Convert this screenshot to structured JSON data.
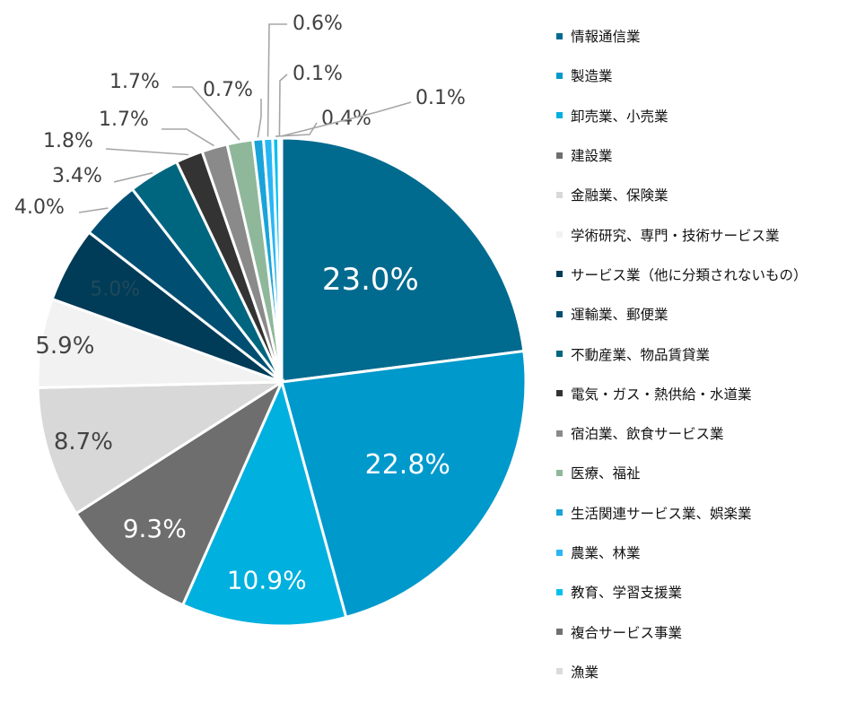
{
  "chart_data": {
    "type": "pie",
    "title": "",
    "slices": [
      {
        "label": "情報通信業",
        "value": 23.0,
        "display": "23.0%",
        "color": "#006A8F"
      },
      {
        "label": "製造業",
        "value": 22.8,
        "display": "22.8%",
        "color": "#0099CC"
      },
      {
        "label": "卸売業、小売業",
        "value": 10.9,
        "display": "10.9%",
        "color": "#00B0DE"
      },
      {
        "label": "建設業",
        "value": 9.3,
        "display": "9.3%",
        "color": "#6E6E6E"
      },
      {
        "label": "金融業、保険業",
        "value": 8.7,
        "display": "8.7%",
        "color": "#D8D8D8"
      },
      {
        "label": "学術研究、専門・技術サービス業",
        "value": 5.9,
        "display": "5.9%",
        "color": "#F2F2F2"
      },
      {
        "label": "サービス業（他に分類されないもの）",
        "value": 5.0,
        "display": "5.0%",
        "color": "#003B57"
      },
      {
        "label": "運輸業、郵便業",
        "value": 4.0,
        "display": "4.0%",
        "color": "#004F73"
      },
      {
        "label": "不動産業、物品賃貸業",
        "value": 3.4,
        "display": "3.4%",
        "color": "#006680"
      },
      {
        "label": "電気・ガス・熱供給・水道業",
        "value": 1.8,
        "display": "1.8%",
        "color": "#333333"
      },
      {
        "label": "宿泊業、飲食サービス業",
        "value": 1.7,
        "display": "1.7%",
        "color": "#8A8A8A"
      },
      {
        "label": "医療、福祉",
        "value": 1.7,
        "display": "1.7%",
        "color": "#8FB89B"
      },
      {
        "label": "生活関連サービス業、娯楽業",
        "value": 0.7,
        "display": "0.7%",
        "color": "#1AA3D9"
      },
      {
        "label": "農業、林業",
        "value": 0.6,
        "display": "0.6%",
        "color": "#29B6F6"
      },
      {
        "label": "教育、学習支援業",
        "value": 0.4,
        "display": "0.4%",
        "color": "#00C0F0"
      },
      {
        "label": "複合サービス事業",
        "value": 0.1,
        "display": "0.1%",
        "color": "#707070"
      },
      {
        "label": "漁業",
        "value": 0.1,
        "display": "0.1%",
        "color": "#DADADA"
      }
    ],
    "legend_position": "right"
  }
}
